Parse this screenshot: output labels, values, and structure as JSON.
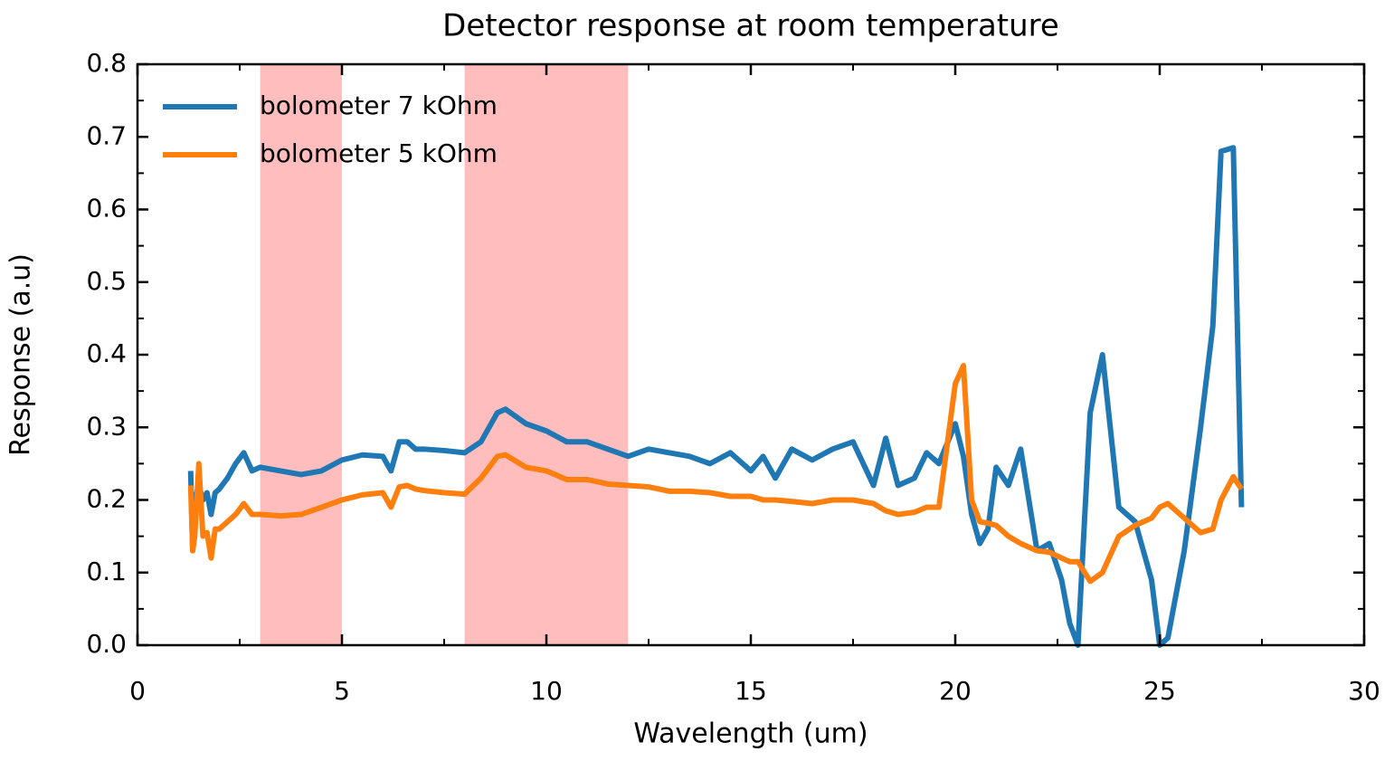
{
  "chart_data": {
    "type": "line",
    "title": "Detector response at room temperature",
    "xlabel": "Wavelength (um)",
    "ylabel": "Response (a.u)",
    "xlim": [
      0,
      30
    ],
    "ylim": [
      0,
      0.8
    ],
    "xticks": [
      0,
      5,
      10,
      15,
      20,
      25,
      30
    ],
    "yticks": [
      {
        "value": 0,
        "label": "0.0"
      },
      0.1,
      0.2,
      0.3,
      0.4,
      0.5,
      0.6,
      0.7,
      0.8
    ],
    "xminorticks": [
      2.5,
      7.5,
      12.5,
      17.5,
      22.5,
      27.5
    ],
    "yminorticks": [
      0.05,
      0.15,
      0.25,
      0.35,
      0.45,
      0.55,
      0.65,
      0.75
    ],
    "spans": [
      {
        "x": [
          3,
          5
        ],
        "color": "#ffbdbd"
      },
      {
        "x": [
          8,
          12
        ],
        "color": "#ffbdbd"
      }
    ],
    "legend": "upper left",
    "x": [
      1.3,
      1.35,
      1.4,
      1.5,
      1.6,
      1.7,
      1.8,
      1.9,
      2.0,
      2.2,
      2.4,
      2.6,
      2.8,
      3.0,
      3.5,
      4.0,
      4.5,
      5.0,
      5.5,
      6.0,
      6.2,
      6.4,
      6.6,
      6.8,
      7.0,
      7.5,
      8.0,
      8.4,
      8.8,
      9.0,
      9.5,
      10.0,
      10.5,
      11.0,
      11.5,
      12.0,
      12.5,
      13.0,
      13.5,
      14.0,
      14.5,
      15.0,
      15.3,
      15.6,
      16.0,
      16.5,
      17.0,
      17.5,
      18.0,
      18.3,
      18.6,
      19.0,
      19.3,
      19.6,
      20.0,
      20.2,
      20.4,
      20.6,
      20.8,
      21.0,
      21.3,
      21.6,
      22.0,
      22.3,
      22.6,
      22.8,
      23.0,
      23.3,
      23.6,
      24.0,
      24.4,
      24.8,
      25.0,
      25.2,
      25.6,
      26.0,
      26.3,
      26.5,
      26.8,
      27.0
    ],
    "series": [
      {
        "name": "bolometer 7 kOhm",
        "color": "#1f77b4",
        "values": [
          0.24,
          0.13,
          0.2,
          0.22,
          0.2,
          0.21,
          0.18,
          0.21,
          0.215,
          0.23,
          0.25,
          0.265,
          0.24,
          0.245,
          0.24,
          0.235,
          0.24,
          0.255,
          0.262,
          0.26,
          0.24,
          0.28,
          0.28,
          0.27,
          0.27,
          0.268,
          0.265,
          0.28,
          0.32,
          0.325,
          0.305,
          0.295,
          0.28,
          0.28,
          0.27,
          0.26,
          0.27,
          0.265,
          0.26,
          0.25,
          0.265,
          0.24,
          0.26,
          0.23,
          0.27,
          0.255,
          0.27,
          0.28,
          0.22,
          0.285,
          0.22,
          0.23,
          0.265,
          0.25,
          0.305,
          0.26,
          0.18,
          0.14,
          0.16,
          0.245,
          0.22,
          0.27,
          0.13,
          0.14,
          0.09,
          0.03,
          0.0,
          0.32,
          0.4,
          0.19,
          0.17,
          0.09,
          0.0,
          0.01,
          0.13,
          0.3,
          0.44,
          0.68,
          0.685,
          0.19
        ]
      },
      {
        "name": "bolometer 5 kOhm",
        "color": "#ff7f0e",
        "values": [
          0.22,
          0.13,
          0.15,
          0.25,
          0.15,
          0.155,
          0.12,
          0.16,
          0.16,
          0.17,
          0.18,
          0.195,
          0.18,
          0.18,
          0.178,
          0.18,
          0.19,
          0.2,
          0.207,
          0.21,
          0.19,
          0.218,
          0.22,
          0.215,
          0.213,
          0.21,
          0.208,
          0.23,
          0.26,
          0.262,
          0.245,
          0.24,
          0.228,
          0.228,
          0.222,
          0.22,
          0.218,
          0.212,
          0.212,
          0.21,
          0.205,
          0.205,
          0.2,
          0.2,
          0.198,
          0.195,
          0.2,
          0.2,
          0.195,
          0.185,
          0.18,
          0.183,
          0.19,
          0.19,
          0.36,
          0.385,
          0.2,
          0.17,
          0.168,
          0.165,
          0.15,
          0.14,
          0.13,
          0.128,
          0.12,
          0.115,
          0.115,
          0.088,
          0.1,
          0.15,
          0.165,
          0.175,
          0.19,
          0.195,
          0.175,
          0.155,
          0.16,
          0.2,
          0.232,
          0.215
        ]
      }
    ]
  }
}
